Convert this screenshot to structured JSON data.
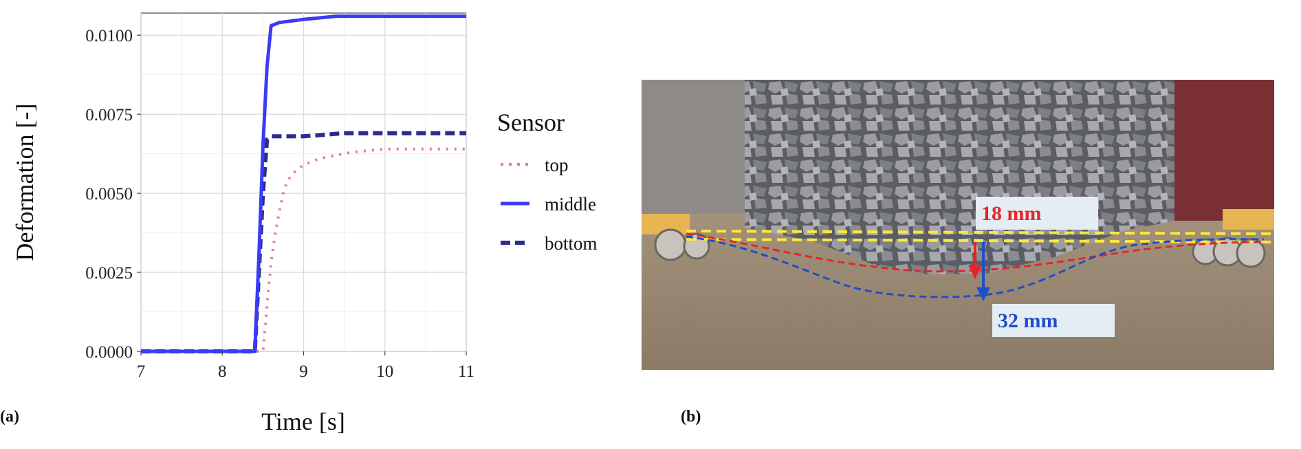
{
  "chart_data": {
    "type": "line",
    "xlabel": "Time [s]",
    "ylabel": "Deformation [-]",
    "xlim": [
      7,
      11
    ],
    "ylim": [
      0,
      0.0107
    ],
    "xticks": [
      7,
      8,
      9,
      10,
      11
    ],
    "yticks": [
      0.0,
      0.0025,
      0.005,
      0.0075,
      0.01
    ],
    "xtick_labels": [
      "7",
      "8",
      "9",
      "10",
      "11"
    ],
    "ytick_labels": [
      "0.0000",
      "0.0025",
      "0.0050",
      "0.0075",
      "0.0100"
    ],
    "grid": true,
    "legend": {
      "title": "Sensor",
      "position": "right"
    },
    "series": [
      {
        "name": "top",
        "style": "dotted",
        "color": "#e07aa3",
        "x": [
          7.0,
          8.5,
          8.53,
          8.56,
          8.6,
          8.65,
          8.7,
          8.75,
          8.8,
          8.9,
          9.0,
          9.2,
          9.4,
          9.6,
          9.8,
          10.0,
          10.4,
          10.8,
          11.0
        ],
        "y": [
          0.0,
          0.0,
          0.0008,
          0.0018,
          0.0028,
          0.0037,
          0.0044,
          0.005,
          0.0054,
          0.0057,
          0.0059,
          0.0061,
          0.0062,
          0.0063,
          0.00635,
          0.0064,
          0.0064,
          0.0064,
          0.0064
        ]
      },
      {
        "name": "middle",
        "style": "solid",
        "color": "#3b3bf5",
        "x": [
          7.0,
          8.4,
          8.45,
          8.5,
          8.55,
          8.6,
          8.7,
          9.0,
          9.4,
          10.0,
          10.5,
          11.0
        ],
        "y": [
          0.0,
          0.0,
          0.003,
          0.0065,
          0.009,
          0.0103,
          0.0104,
          0.0105,
          0.0106,
          0.0106,
          0.0106,
          0.0106
        ]
      },
      {
        "name": "bottom",
        "style": "dashed",
        "color": "#2b2b8f",
        "x": [
          7.0,
          8.4,
          8.45,
          8.5,
          8.55,
          8.6,
          9.0,
          9.5,
          10.0,
          10.5,
          11.0
        ],
        "y": [
          0.0,
          0.0,
          0.0025,
          0.005,
          0.0067,
          0.0068,
          0.0068,
          0.0069,
          0.0069,
          0.0069,
          0.0069
        ]
      }
    ]
  },
  "panels": {
    "a_label": "(a)",
    "b_label": "(b)"
  },
  "photo": {
    "red_label": "18 mm",
    "blue_label": "32 mm",
    "colors": {
      "red": "#e3262b",
      "blue": "#1f4fc7",
      "yellow": "#ffe83a"
    }
  }
}
